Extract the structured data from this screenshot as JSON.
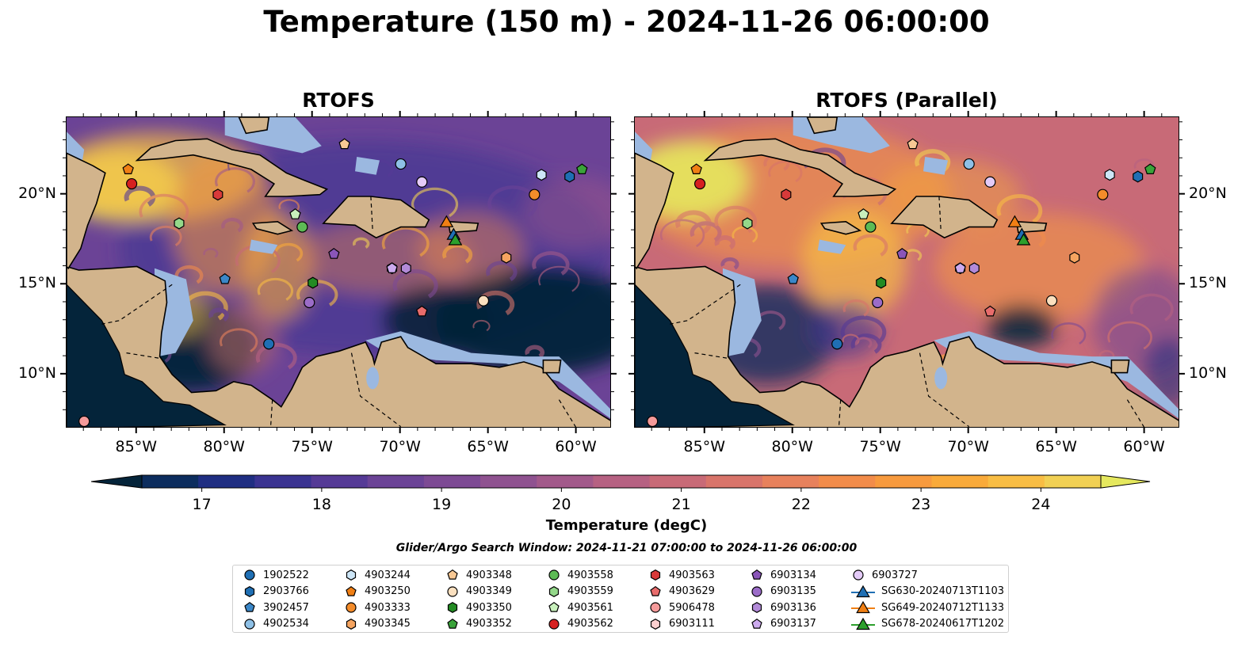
{
  "title": "Temperature (150 m) - 2024-11-26 06:00:00",
  "panels": [
    {
      "title": "RTOFS"
    },
    {
      "title": "RTOFS (Parallel)"
    }
  ],
  "axes": {
    "lon_ticks": [
      "85°W",
      "80°W",
      "75°W",
      "70°W",
      "65°W",
      "60°W"
    ],
    "lat_ticks": [
      "20°N",
      "15°N",
      "10°N"
    ],
    "lon_range": [
      -89,
      -58
    ],
    "lat_range": [
      7,
      24.3
    ]
  },
  "colorbar": {
    "label": "Temperature (degC)",
    "ticks": [
      "17",
      "18",
      "19",
      "20",
      "21",
      "22",
      "23",
      "24"
    ],
    "range": [
      16.5,
      24.5
    ],
    "colors": [
      "#04243a",
      "#0c2d5e",
      "#1f2e82",
      "#3a3391",
      "#553a96",
      "#6b4396",
      "#7d4a94",
      "#8f5290",
      "#a2598a",
      "#b66182",
      "#c86a77",
      "#d8746a",
      "#e7815c",
      "#f28c4a",
      "#f79a3e",
      "#f9aa3a",
      "#f8bd44",
      "#f1d054",
      "#e5e85e"
    ]
  },
  "land_color": "#d2b48c",
  "shelf_color": "#9bb8e0",
  "search_window": "Glider/Argo Search Window: 2024-11-21 07:00:00 to 2024-11-26 06:00:00",
  "legend": [
    {
      "label": "1902522",
      "shape": "circle",
      "color": "#1f6fb4"
    },
    {
      "label": "2903766",
      "shape": "hexagon",
      "color": "#1f6fb4"
    },
    {
      "label": "3902457",
      "shape": "pentagon",
      "color": "#3b87c8"
    },
    {
      "label": "4902534",
      "shape": "circle",
      "color": "#8ec0e6"
    },
    {
      "label": "4903244",
      "shape": "hexagon",
      "color": "#cde6f7"
    },
    {
      "label": "4903250",
      "shape": "pentagon",
      "color": "#f07f14"
    },
    {
      "label": "4903333",
      "shape": "circle",
      "color": "#f48c2a"
    },
    {
      "label": "4903345",
      "shape": "hexagon",
      "color": "#f5a460"
    },
    {
      "label": "4903348",
      "shape": "pentagon",
      "color": "#f7c894"
    },
    {
      "label": "4903349",
      "shape": "circle",
      "color": "#fbe0bf"
    },
    {
      "label": "4903350",
      "shape": "hexagon",
      "color": "#238b23"
    },
    {
      "label": "4903352",
      "shape": "pentagon",
      "color": "#3aa33a"
    },
    {
      "label": "4903558",
      "shape": "circle",
      "color": "#5dbb55"
    },
    {
      "label": "4903559",
      "shape": "hexagon",
      "color": "#94d88a"
    },
    {
      "label": "4903561",
      "shape": "pentagon",
      "color": "#c8f0bc"
    },
    {
      "label": "4903562",
      "shape": "circle",
      "color": "#d62020"
    },
    {
      "label": "4903563",
      "shape": "hexagon",
      "color": "#d83a3a"
    },
    {
      "label": "4903629",
      "shape": "pentagon",
      "color": "#e86c6c"
    },
    {
      "label": "5906478",
      "shape": "circle",
      "color": "#f59a9a"
    },
    {
      "label": "6903111",
      "shape": "hexagon",
      "color": "#fbcfcf"
    },
    {
      "label": "6903134",
      "shape": "pentagon",
      "color": "#8a55b8"
    },
    {
      "label": "6903135",
      "shape": "circle",
      "color": "#9b6cc8"
    },
    {
      "label": "6903136",
      "shape": "hexagon",
      "color": "#b28ad8"
    },
    {
      "label": "6903137",
      "shape": "pentagon",
      "color": "#ccaaee"
    },
    {
      "label": "6903727",
      "shape": "circle",
      "color": "#e4cbf8"
    },
    {
      "label": "SG630-20240713T1103",
      "shape": "triangle",
      "color": "#1f6fb4"
    },
    {
      "label": "SG649-20240712T1133",
      "shape": "triangle",
      "color": "#f07f14"
    },
    {
      "label": "SG678-20240617T1202",
      "shape": "triangle",
      "color": "#2ca02c"
    }
  ],
  "platforms": [
    {
      "id": "1902522",
      "lon": -77.5,
      "lat": 11.7
    },
    {
      "id": "2903766",
      "lon": -60.4,
      "lat": 21.0
    },
    {
      "id": "3902457",
      "lon": -80.0,
      "lat": 15.3
    },
    {
      "id": "4902534",
      "lon": -70.0,
      "lat": 21.7
    },
    {
      "id": "4903244",
      "lon": -62.0,
      "lat": 21.1
    },
    {
      "id": "4903250",
      "lon": -85.5,
      "lat": 21.4
    },
    {
      "id": "4903333",
      "lon": -62.4,
      "lat": 20.0
    },
    {
      "id": "4903345",
      "lon": -64.0,
      "lat": 16.5
    },
    {
      "id": "4903348",
      "lon": -73.2,
      "lat": 22.8
    },
    {
      "id": "4903349",
      "lon": -65.3,
      "lat": 14.1
    },
    {
      "id": "4903350",
      "lon": -75.0,
      "lat": 15.1
    },
    {
      "id": "4903352",
      "lon": -59.7,
      "lat": 21.4
    },
    {
      "id": "4903558",
      "lon": -75.6,
      "lat": 18.2
    },
    {
      "id": "4903559",
      "lon": -82.6,
      "lat": 18.4
    },
    {
      "id": "4903561",
      "lon": -76.0,
      "lat": 18.9
    },
    {
      "id": "4903562",
      "lon": -85.3,
      "lat": 20.6
    },
    {
      "id": "4903563",
      "lon": -80.4,
      "lat": 20.0
    },
    {
      "id": "4903629",
      "lon": -68.8,
      "lat": 13.5
    },
    {
      "id": "5906478",
      "lon": -88.0,
      "lat": 7.4
    },
    {
      "id": "6903111",
      "lon": -70.5,
      "lat": 15.9
    },
    {
      "id": "6903134",
      "lon": -73.8,
      "lat": 16.7
    },
    {
      "id": "6903135",
      "lon": -75.2,
      "lat": 14.0
    },
    {
      "id": "6903136",
      "lon": -69.7,
      "lat": 15.9
    },
    {
      "id": "6903137",
      "lon": -70.5,
      "lat": 15.9
    },
    {
      "id": "6903727",
      "lon": -68.8,
      "lat": 20.7
    },
    {
      "id": "SG630-20240713T1103",
      "lon": -67.0,
      "lat": 17.8
    },
    {
      "id": "SG649-20240712T1133",
      "lon": -67.4,
      "lat": 18.5
    },
    {
      "id": "SG678-20240617T1202",
      "lon": -66.9,
      "lat": 17.5
    }
  ]
}
